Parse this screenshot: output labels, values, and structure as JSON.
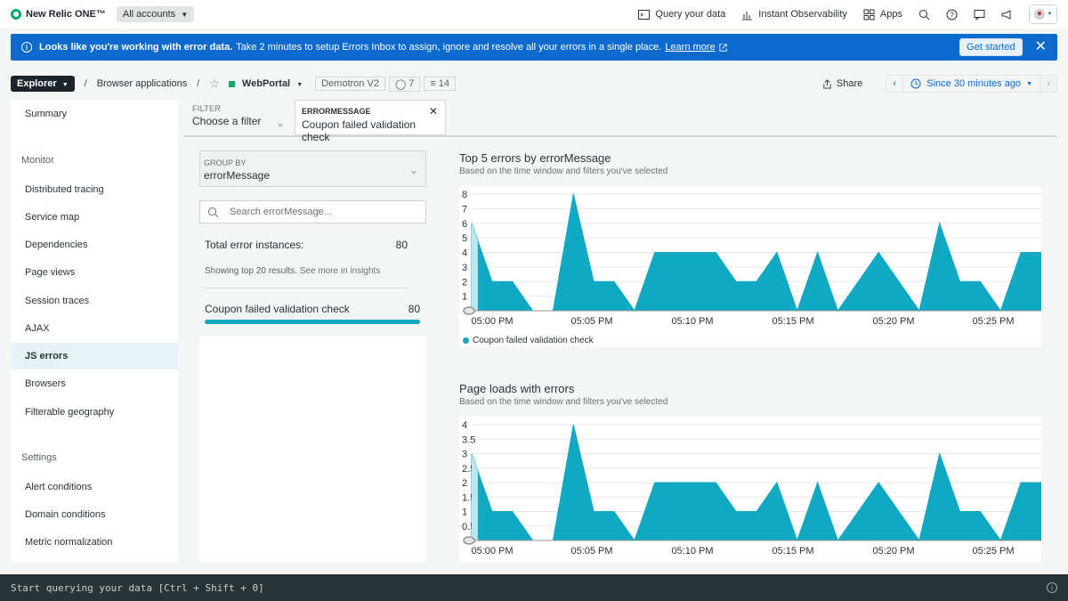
{
  "topnav": {
    "brand": "New Relic ONE™",
    "account": "All accounts",
    "query_your_data": "Query your data",
    "instant_observability": "Instant Observability",
    "apps": "Apps"
  },
  "banner": {
    "bold": "Looks like you're working with error data.",
    "text": "Take 2 minutes to setup Errors Inbox to assign, ignore and resolve all your errors in a single place.",
    "link": "Learn more",
    "button": "Get started"
  },
  "breadcrumb": {
    "explorer": "Explorer",
    "section": "Browser applications",
    "app": "WebPortal",
    "env": "Demotron V2",
    "tags": "7",
    "entities": "14",
    "share": "Share",
    "time": "Since 30 minutes ago"
  },
  "sidebar": {
    "summary": "Summary",
    "monitor_head": "Monitor",
    "monitor_items": [
      "Distributed tracing",
      "Service map",
      "Dependencies",
      "Page views",
      "Session traces",
      "AJAX",
      "JS errors",
      "Browsers",
      "Filterable geography"
    ],
    "active": "JS errors",
    "settings_head": "Settings",
    "settings_items": [
      "Alert conditions",
      "Domain conditions",
      "Metric normalization"
    ]
  },
  "filter": {
    "label": "FILTER",
    "placeholder": "Choose a filter",
    "chip_label": "ERRORMESSAGE",
    "chip_value": "Coupon failed validation check"
  },
  "panel": {
    "groupby_label": "GROUP BY",
    "groupby_value": "errorMessage",
    "search_placeholder": "Search errorMessage...",
    "total_label": "Total error instances:",
    "total_value": "80",
    "showing": "Showing top 20 results.",
    "see_more": "See more in insights",
    "row_label": "Coupon failed validation check",
    "row_value": "80",
    "row_fraction": 1.0
  },
  "colors": {
    "accent": "#11a8c3",
    "secondary": "#e8c446",
    "banner": "#0b6acb"
  },
  "chart_data": [
    {
      "type": "area",
      "title": "Top 5 errors by errorMessage",
      "subtitle": "Based on the time window and filters you've selected",
      "x_ticks": [
        "05:00 PM",
        "05:05 PM",
        "05:10 PM",
        "05:15 PM",
        "05:20 PM",
        "05:25 PM"
      ],
      "y_ticks": [
        "1",
        "2",
        "3",
        "4",
        "5",
        "6",
        "7",
        "8"
      ],
      "ylim": [
        0,
        8
      ],
      "legend": [
        "Coupon failed validation check"
      ],
      "series": [
        {
          "name": "Coupon failed validation check",
          "values": [
            6,
            2,
            2,
            0,
            0,
            8,
            2,
            2,
            0,
            4,
            4,
            4,
            4,
            2,
            2,
            4,
            0,
            4,
            0,
            2,
            4,
            2,
            0,
            6,
            2,
            2,
            0,
            4,
            4
          ]
        }
      ]
    },
    {
      "type": "area",
      "title": "Page loads with errors",
      "subtitle": "Based on the time window and filters you've selected",
      "x_ticks": [
        "05:00 PM",
        "05:05 PM",
        "05:10 PM",
        "05:15 PM",
        "05:20 PM",
        "05:25 PM"
      ],
      "y_ticks": [
        "0.5",
        "1",
        "1.5",
        "2",
        "2.5",
        "3",
        "3.5",
        "4"
      ],
      "ylim": [
        0,
        4
      ],
      "series": [
        {
          "values": [
            3,
            1,
            1,
            0,
            0,
            4,
            1,
            1,
            0,
            2,
            2,
            2,
            2,
            1,
            1,
            2,
            0,
            2,
            0,
            1,
            2,
            1,
            0,
            3,
            1,
            1,
            0,
            2,
            2
          ]
        },
        {
          "values": [
            0,
            0,
            0,
            0,
            0,
            0,
            1,
            1,
            0,
            0,
            0,
            0,
            0,
            0,
            0,
            0,
            0,
            0,
            0,
            0,
            0,
            0,
            0,
            0,
            0,
            0,
            0,
            0,
            0
          ]
        }
      ]
    }
  ]
}
